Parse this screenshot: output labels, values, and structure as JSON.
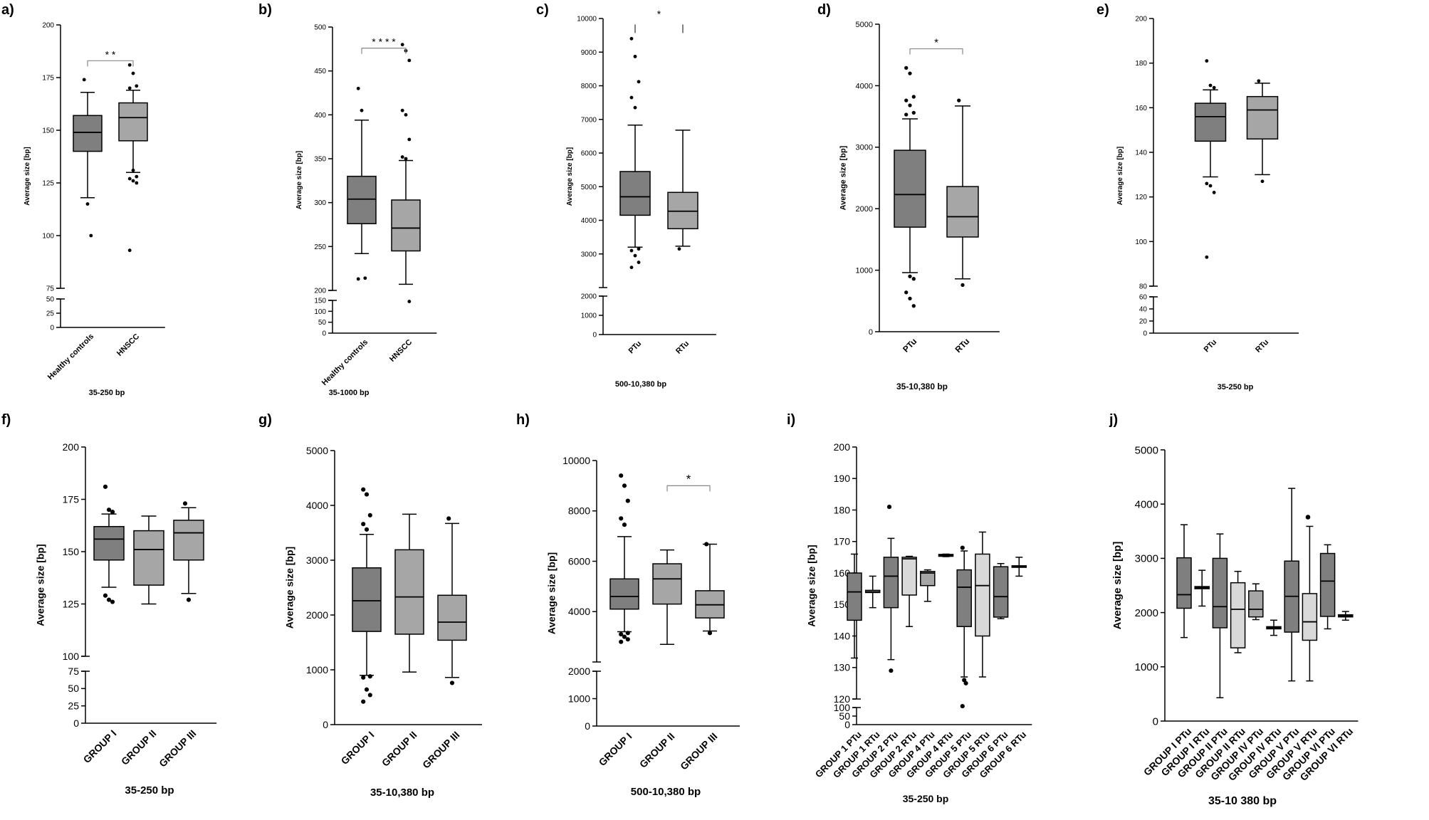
{
  "chart_data": [
    {
      "id": "a",
      "type": "box",
      "label": "a)",
      "ylabel": "Average size [bp]",
      "xlabel": "35-250 bp",
      "categories": [
        "Healthy controls",
        "HNSCC"
      ],
      "colors": [
        "#7f7f7f",
        "#a6a6a6"
      ],
      "axis": {
        "upper": [
          75,
          200
        ],
        "upper_ticks": [
          75,
          100,
          125,
          150,
          175,
          200
        ],
        "lower": [
          0,
          50
        ],
        "lower_ticks": [
          0,
          25,
          50
        ]
      },
      "boxes": [
        {
          "q1": 140,
          "median": 149,
          "q3": 157,
          "wlo": 118,
          "whi": 168,
          "outliers": [
            174,
            115,
            100
          ]
        },
        {
          "q1": 145,
          "median": 156,
          "q3": 163,
          "wlo": 130,
          "whi": 169,
          "outliers": [
            181,
            177,
            171,
            170,
            131,
            128,
            127,
            126,
            125,
            93
          ]
        }
      ],
      "sig": [
        {
          "from": 0,
          "to": 1,
          "y": 183,
          "text": "* *"
        }
      ]
    },
    {
      "id": "b",
      "type": "box",
      "label": "b)",
      "ylabel": "Average size [bp]",
      "xlabel": "35-1000 bp",
      "categories": [
        "Healthy controls",
        "HNSCC"
      ],
      "colors": [
        "#7f7f7f",
        "#a6a6a6"
      ],
      "axis": {
        "upper": [
          200,
          500
        ],
        "upper_ticks": [
          200,
          250,
          300,
          350,
          400,
          450,
          500
        ],
        "lower": [
          0,
          150
        ],
        "lower_ticks": [
          0,
          50,
          100,
          150
        ]
      },
      "boxes": [
        {
          "q1": 276,
          "median": 304,
          "q3": 330,
          "wlo": 242,
          "whi": 394,
          "outliers": [
            430,
            405,
            214,
            213
          ]
        },
        {
          "q1": 245,
          "median": 271,
          "q3": 303,
          "wlo": 207,
          "whi": 348,
          "outliers": [
            480,
            473,
            462,
            405,
            400,
            372,
            352,
            350,
            145
          ]
        }
      ],
      "sig": [
        {
          "from": 0,
          "to": 1,
          "y": 476,
          "text": "* * * *"
        }
      ]
    },
    {
      "id": "c",
      "type": "box",
      "label": "c)",
      "ylabel": "Average size [bp]",
      "xlabel": "500-10,380 bp",
      "categories": [
        "PTu",
        "RTu"
      ],
      "colors": [
        "#7f7f7f",
        "#a6a6a6"
      ],
      "axis": {
        "upper": [
          2000,
          10000
        ],
        "upper_ticks": [
          3000,
          4000,
          5000,
          6000,
          7000,
          8000,
          9000,
          10000
        ],
        "lower": [
          0,
          2000
        ],
        "lower_ticks": [
          0,
          1000,
          2000
        ]
      },
      "boxes": [
        {
          "q1": 4150,
          "median": 4700,
          "q3": 5450,
          "wlo": 3200,
          "whi": 6830,
          "outliers": [
            9400,
            8870,
            8120,
            7650,
            7350,
            3150,
            3100,
            2950,
            2750,
            2600
          ]
        },
        {
          "q1": 3750,
          "median": 4270,
          "q3": 4830,
          "wlo": 3230,
          "whi": 6680,
          "outliers": [
            3150
          ]
        }
      ],
      "sig": [
        {
          "from": 0,
          "to": 1,
          "y": 9950,
          "text": "*",
          "drop": 6
        }
      ]
    },
    {
      "id": "d",
      "type": "box",
      "label": "d)",
      "ylabel": "Average size [bp]",
      "xlabel": "35-10,380 bp",
      "categories": [
        "PTu",
        "RTu"
      ],
      "colors": [
        "#7f7f7f",
        "#a6a6a6"
      ],
      "axis": {
        "upper": [
          0,
          5000
        ],
        "upper_ticks": [
          0,
          1000,
          2000,
          3000,
          4000,
          5000
        ]
      },
      "boxes": [
        {
          "q1": 1700,
          "median": 2230,
          "q3": 2950,
          "wlo": 960,
          "whi": 3460,
          "outliers": [
            4290,
            4200,
            3820,
            3760,
            3680,
            3560,
            3530,
            900,
            860,
            640,
            540,
            420
          ]
        },
        {
          "q1": 1540,
          "median": 1870,
          "q3": 2360,
          "wlo": 860,
          "whi": 3670,
          "outliers": [
            3760,
            760
          ]
        }
      ],
      "sig": [
        {
          "from": 0,
          "to": 1,
          "y": 4600,
          "text": "*"
        }
      ]
    },
    {
      "id": "e",
      "type": "box",
      "label": "e)",
      "ylabel": "Average size [bp]",
      "xlabel": "35-250 bp",
      "categories": [
        "PTu",
        "RTu"
      ],
      "colors": [
        "#7f7f7f",
        "#a6a6a6"
      ],
      "axis": {
        "upper": [
          80,
          200
        ],
        "upper_ticks": [
          80,
          100,
          120,
          140,
          160,
          180,
          200
        ],
        "lower": [
          0,
          60
        ],
        "lower_ticks": [
          0,
          20,
          40,
          60
        ]
      },
      "boxes": [
        {
          "q1": 145,
          "median": 156,
          "q3": 162,
          "wlo": 129,
          "whi": 168,
          "outliers": [
            181,
            170,
            169,
            126,
            125,
            122,
            93
          ]
        },
        {
          "q1": 146,
          "median": 159,
          "q3": 165,
          "wlo": 130,
          "whi": 171,
          "outliers": [
            172,
            127
          ]
        }
      ],
      "sig": []
    },
    {
      "id": "f",
      "type": "box",
      "label": "f)",
      "ylabel": "Average size [bp]",
      "xlabel": "35-250 bp",
      "categories": [
        "GROUP I",
        "GROUP II",
        "GROUP III"
      ],
      "colors": [
        "#7f7f7f",
        "#a6a6a6",
        "#a6a6a6"
      ],
      "axis": {
        "upper": [
          100,
          200
        ],
        "upper_ticks": [
          100,
          125,
          150,
          175,
          200
        ],
        "lower": [
          0,
          75
        ],
        "lower_ticks": [
          0,
          25,
          50,
          75
        ]
      },
      "boxes": [
        {
          "q1": 146,
          "median": 156,
          "q3": 162,
          "wlo": 133,
          "whi": 168,
          "outliers": [
            181,
            170,
            169,
            129,
            127,
            126
          ]
        },
        {
          "q1": 134,
          "median": 151,
          "q3": 160,
          "wlo": 125,
          "whi": 167,
          "outliers": []
        },
        {
          "q1": 146,
          "median": 159,
          "q3": 165,
          "wlo": 130,
          "whi": 171,
          "outliers": [
            173,
            127
          ]
        }
      ],
      "sig": []
    },
    {
      "id": "g",
      "type": "box",
      "label": "g)",
      "ylabel": "Average size [bp]",
      "xlabel": "35-10,380 bp",
      "categories": [
        "GROUP I",
        "GROUP II",
        "GROUP III"
      ],
      "colors": [
        "#7f7f7f",
        "#a6a6a6",
        "#a6a6a6"
      ],
      "axis": {
        "upper": [
          0,
          5000
        ],
        "upper_ticks": [
          0,
          1000,
          2000,
          3000,
          4000,
          5000
        ]
      },
      "boxes": [
        {
          "q1": 1700,
          "median": 2260,
          "q3": 2860,
          "wlo": 900,
          "whi": 3470,
          "outliers": [
            4290,
            4200,
            3820,
            3660,
            3560,
            880,
            860,
            640,
            540,
            420
          ]
        },
        {
          "q1": 1650,
          "median": 2330,
          "q3": 3190,
          "wlo": 960,
          "whi": 3840,
          "outliers": []
        },
        {
          "q1": 1540,
          "median": 1870,
          "q3": 2360,
          "wlo": 860,
          "whi": 3670,
          "outliers": [
            3760,
            760
          ]
        }
      ],
      "sig": []
    },
    {
      "id": "h",
      "type": "box",
      "label": "h)",
      "ylabel": "Average size [bp]",
      "xlabel": "500-10,380 bp",
      "categories": [
        "GROUP I",
        "GROUP II",
        "GROUP III"
      ],
      "colors": [
        "#7f7f7f",
        "#a6a6a6",
        "#a6a6a6"
      ],
      "axis": {
        "upper": [
          2000,
          10000
        ],
        "upper_ticks": [
          4000,
          6000,
          8000,
          10000
        ],
        "lower": [
          0,
          2000
        ],
        "lower_ticks": [
          0,
          1000,
          2000
        ]
      },
      "boxes": [
        {
          "q1": 4100,
          "median": 4600,
          "q3": 5300,
          "wlo": 3200,
          "whi": 6980,
          "outliers": [
            9400,
            9000,
            8400,
            7700,
            7450,
            3150,
            3100,
            3000,
            2900,
            2800
          ]
        },
        {
          "q1": 4300,
          "median": 5300,
          "q3": 5900,
          "wlo": 2700,
          "whi": 6450,
          "outliers": []
        },
        {
          "q1": 3750,
          "median": 4270,
          "q3": 4830,
          "wlo": 3230,
          "whi": 6680,
          "outliers": [
            6680,
            3150
          ]
        }
      ],
      "sig": [
        {
          "from": 1,
          "to": 2,
          "y": 9000,
          "text": "*"
        }
      ]
    },
    {
      "id": "i",
      "type": "box",
      "label": "i)",
      "ylabel": "Average size [bp]",
      "xlabel": "35-250 bp",
      "categories": [
        "GROUP 1 PTu",
        "GROUP 1 RTu",
        "GROUP 2 PTu",
        "GROUP 2 RTu",
        "GROUP 4 PTu",
        "GROUP 4 RTu",
        "GROUP 5 PTu",
        "GROUP 5 RTu",
        "GROUP 6 PTu",
        "GROUP 6 RTu"
      ],
      "colors": [
        "#7f7f7f",
        "#a6a6a6",
        "#7f7f7f",
        "#d9d9d9",
        "#a6a6a6",
        "#7f7f7f",
        "#7f7f7f",
        "#d9d9d9",
        "#7f7f7f",
        "#a6a6a6"
      ],
      "axis": {
        "upper": [
          120,
          200
        ],
        "upper_ticks": [
          120,
          130,
          140,
          150,
          160,
          170,
          180,
          190,
          200
        ],
        "lower": [
          0,
          100
        ],
        "lower_ticks": [
          0,
          50,
          100
        ]
      },
      "boxes": [
        {
          "q1": 145,
          "median": 154,
          "q3": 160,
          "wlo": 133,
          "whi": 166,
          "outliers": []
        },
        {
          "q1": 153.8,
          "median": 154,
          "q3": 154.5,
          "wlo": 149,
          "whi": 159,
          "outliers": []
        },
        {
          "q1": 149,
          "median": 159,
          "q3": 165,
          "wlo": 132.5,
          "whi": 171,
          "outliers": [
            181,
            129
          ]
        },
        {
          "q1": 153,
          "median": 164.5,
          "q3": 165,
          "wlo": 143,
          "whi": 165.3,
          "outliers": []
        },
        {
          "q1": 156,
          "median": 160,
          "q3": 160.5,
          "wlo": 151,
          "whi": 161,
          "outliers": []
        },
        {
          "q1": 165.3,
          "median": 165.6,
          "q3": 165.9,
          "wlo": 165.2,
          "whi": 166,
          "outliers": []
        },
        {
          "q1": 143,
          "median": 155.5,
          "q3": 161,
          "wlo": 127,
          "whi": 167,
          "outliers": [
            168,
            126,
            125,
            108
          ]
        },
        {
          "q1": 140,
          "median": 156,
          "q3": 166,
          "wlo": 127,
          "whi": 173,
          "outliers": []
        },
        {
          "q1": 146,
          "median": 152.5,
          "q3": 162,
          "wlo": 145.5,
          "whi": 163,
          "outliers": []
        },
        {
          "q1": 161.8,
          "median": 162,
          "q3": 162.3,
          "wlo": 159,
          "whi": 165,
          "outliers": []
        }
      ],
      "sig": []
    },
    {
      "id": "j",
      "type": "box",
      "label": "j)",
      "ylabel": "Average size [bp]",
      "xlabel": "35-10 380 bp",
      "categories": [
        "GROUP I PTu",
        "GROUP I RTu",
        "GROUP II PTu",
        "GROUP II RTu",
        "GROUP IV PTu",
        "GROUP IV RTu",
        "GROUP V PTu",
        "GROUP V RTu",
        "GROUP VI PTu",
        "GROUP VI RTu"
      ],
      "colors": [
        "#7f7f7f",
        "#a6a6a6",
        "#7f7f7f",
        "#d9d9d9",
        "#a6a6a6",
        "#7f7f7f",
        "#7f7f7f",
        "#d9d9d9",
        "#7f7f7f",
        "#a6a6a6"
      ],
      "axis": {
        "upper": [
          0,
          5000
        ],
        "upper_ticks": [
          0,
          1000,
          2000,
          3000,
          4000,
          5000
        ]
      },
      "boxes": [
        {
          "q1": 2080,
          "median": 2330,
          "q3": 3010,
          "wlo": 1540,
          "whi": 3620,
          "outliers": []
        },
        {
          "q1": 2440,
          "median": 2460,
          "q3": 2480,
          "wlo": 2120,
          "whi": 2780,
          "outliers": []
        },
        {
          "q1": 1720,
          "median": 2110,
          "q3": 3000,
          "wlo": 430,
          "whi": 3450,
          "outliers": []
        },
        {
          "q1": 1350,
          "median": 2060,
          "q3": 2550,
          "wlo": 1260,
          "whi": 2760,
          "outliers": []
        },
        {
          "q1": 1920,
          "median": 2060,
          "q3": 2400,
          "wlo": 1870,
          "whi": 2530,
          "outliers": []
        },
        {
          "q1": 1700,
          "median": 1720,
          "q3": 1740,
          "wlo": 1580,
          "whi": 1860,
          "outliers": []
        },
        {
          "q1": 1640,
          "median": 2300,
          "q3": 2950,
          "wlo": 740,
          "whi": 4290,
          "outliers": []
        },
        {
          "q1": 1490,
          "median": 1830,
          "q3": 2350,
          "wlo": 740,
          "whi": 3590,
          "outliers": [
            3760
          ]
        },
        {
          "q1": 1930,
          "median": 2580,
          "q3": 3090,
          "wlo": 1700,
          "whi": 3250,
          "outliers": []
        },
        {
          "q1": 1920,
          "median": 1940,
          "q3": 1960,
          "wlo": 1860,
          "whi": 2020,
          "outliers": []
        }
      ],
      "sig": []
    }
  ]
}
